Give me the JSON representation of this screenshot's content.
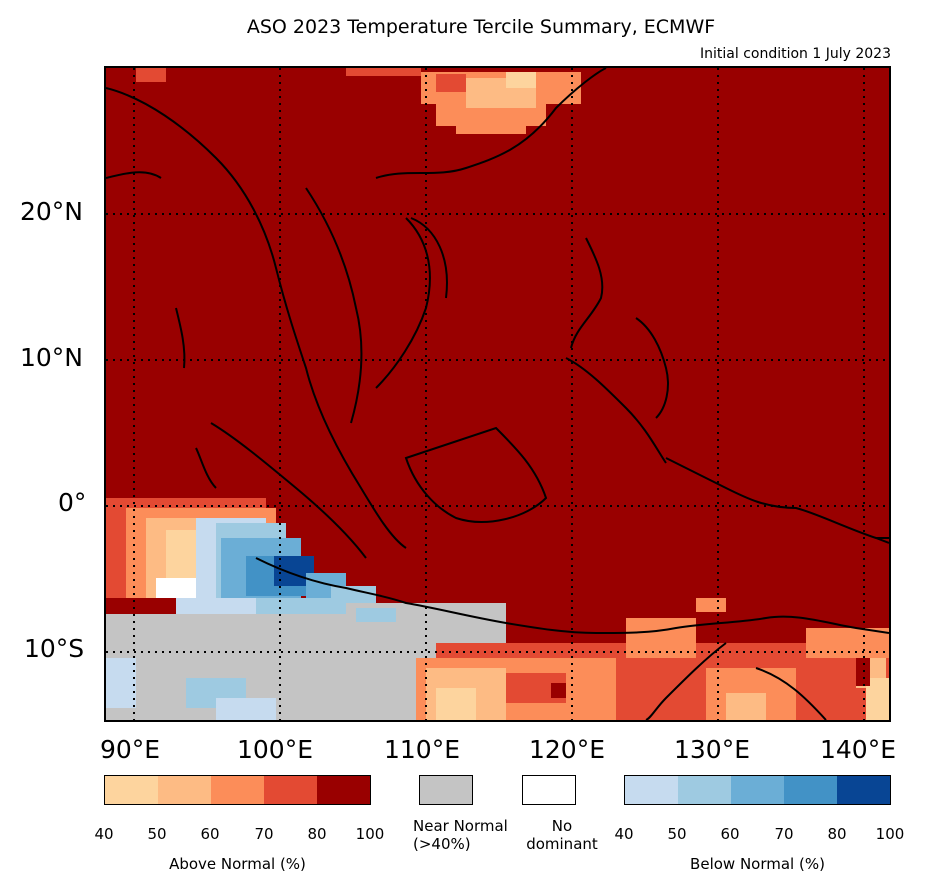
{
  "title": "ASO 2023 Temperature Tercile Summary, ECMWF",
  "subtitle": "Initial condition 1 July 2023",
  "map": {
    "region": "Southeast Asia",
    "lon_range": [
      88,
      142
    ],
    "lat_range": [
      -15,
      30
    ],
    "lat_ticks": [
      "20°N",
      "10°N",
      "0°",
      "10°S"
    ],
    "lon_ticks": [
      "90°E",
      "100°E",
      "110°E",
      "120°E",
      "130°E",
      "140°E"
    ],
    "dominant_category": "Above Normal 80-100%",
    "grid_style": "dotted"
  },
  "legend": {
    "above": {
      "label": "Above Normal (%)",
      "ticks": [
        "40",
        "50",
        "60",
        "70",
        "80",
        "100"
      ],
      "colors": [
        "#fdd49e",
        "#fdbb84",
        "#fc8d59",
        "#e34a33",
        "#990000"
      ]
    },
    "near": {
      "label_line1": "Near Normal",
      "label_line2": "(>40%)",
      "color": "#c4c4c4"
    },
    "none": {
      "label_line1": "No",
      "label_line2": "dominant",
      "color": "#ffffff"
    },
    "below": {
      "label": "Below Normal (%)",
      "ticks": [
        "40",
        "50",
        "60",
        "70",
        "80",
        "100"
      ],
      "colors": [
        "#c6dbef",
        "#9ecae1",
        "#6baed6",
        "#4292c6",
        "#084594"
      ]
    }
  }
}
